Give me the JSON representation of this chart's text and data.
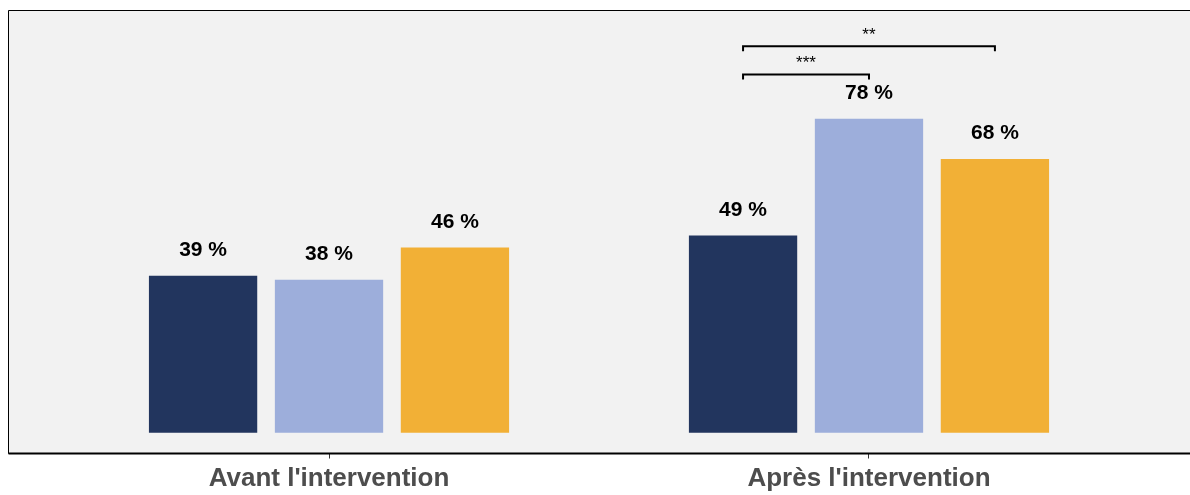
{
  "chart_data": {
    "type": "bar",
    "categories": [
      "Avant l'intervention",
      "Après l'intervention"
    ],
    "series": [
      {
        "color": "#22355e",
        "values": [
          39,
          49
        ],
        "value_labels": [
          "39 %",
          "49 %"
        ]
      },
      {
        "color": "#9daedb",
        "values": [
          38,
          78
        ],
        "value_labels": [
          "38 %",
          "78 %"
        ]
      },
      {
        "color": "#f2b036",
        "values": [
          46,
          68
        ],
        "value_labels": [
          "46 %",
          "68 %"
        ]
      }
    ],
    "ylim": [
      -5,
      105
    ],
    "tick_labels": "x",
    "annotations": [
      "***",
      "**"
    ]
  }
}
